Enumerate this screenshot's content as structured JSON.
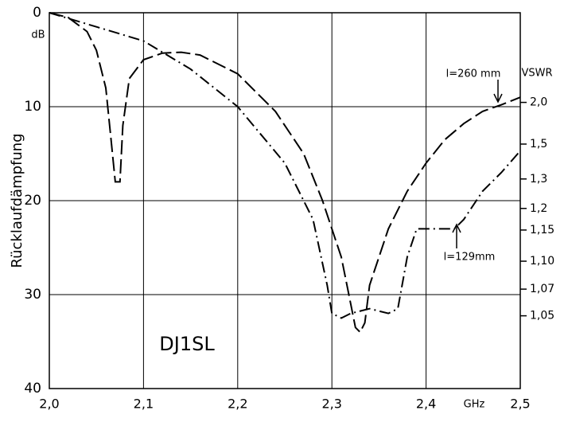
{
  "chart_data": {
    "type": "line",
    "y_label": "Rücklaufdämpfung",
    "y_unit": "dB",
    "x_unit": "GHz",
    "y2_label": "VSWR",
    "annotation": "DJ1SL",
    "xlim": [
      2.0,
      2.5
    ],
    "xticks": [
      {
        "value": 2.0,
        "label": "2,0"
      },
      {
        "value": 2.1,
        "label": "2,1"
      },
      {
        "value": 2.2,
        "label": "2,2"
      },
      {
        "value": 2.3,
        "label": "2,3"
      },
      {
        "value": 2.4,
        "label": "2,4"
      },
      {
        "value": 2.5,
        "label": "2,5"
      }
    ],
    "ylim": [
      0,
      40
    ],
    "y_inverted": true,
    "yticks": [
      0,
      10,
      20,
      30,
      40
    ],
    "y2scale": "vswr-from-return-loss-db",
    "y2ticks": [
      {
        "value": 2.0,
        "label": "2,0"
      },
      {
        "value": 1.5,
        "label": "1,5"
      },
      {
        "value": 1.3,
        "label": "1,3"
      },
      {
        "value": 1.2,
        "label": "1,2"
      },
      {
        "value": 1.15,
        "label": "1,15"
      },
      {
        "value": 1.1,
        "label": "1,10"
      },
      {
        "value": 1.07,
        "label": "1,07"
      },
      {
        "value": 1.05,
        "label": "1,05"
      }
    ],
    "grid": true,
    "series": [
      {
        "name": "l=260 mm",
        "color": "#000000",
        "dash": "dashed",
        "x": [
          2.0,
          2.02,
          2.04,
          2.05,
          2.06,
          2.065,
          2.07,
          2.075,
          2.078,
          2.085,
          2.1,
          2.12,
          2.14,
          2.16,
          2.2,
          2.24,
          2.27,
          2.29,
          2.31,
          2.32,
          2.325,
          2.33,
          2.335,
          2.34,
          2.36,
          2.38,
          2.4,
          2.42,
          2.44,
          2.46,
          2.48,
          2.5
        ],
        "values": [
          0,
          0.5,
          2,
          4,
          8,
          13,
          18,
          18,
          12,
          7,
          5,
          4.3,
          4.2,
          4.5,
          6.5,
          10.5,
          15,
          20,
          26,
          31,
          33.5,
          34,
          33,
          29,
          23,
          19,
          16,
          13.5,
          11.8,
          10.5,
          9.8,
          9
        ]
      },
      {
        "name": "l=129mm",
        "color": "#000000",
        "dash": "dashdot",
        "x": [
          2.0,
          2.05,
          2.1,
          2.15,
          2.2,
          2.25,
          2.28,
          2.295,
          2.3,
          2.31,
          2.32,
          2.34,
          2.36,
          2.37,
          2.38,
          2.39,
          2.41,
          2.43,
          2.44,
          2.46,
          2.48,
          2.5
        ],
        "values": [
          0,
          1.5,
          3,
          6,
          10,
          16,
          22,
          29,
          32,
          32.5,
          32,
          31.5,
          32,
          31.5,
          26,
          23,
          23,
          23,
          22,
          19,
          17,
          14.7
        ]
      }
    ]
  }
}
